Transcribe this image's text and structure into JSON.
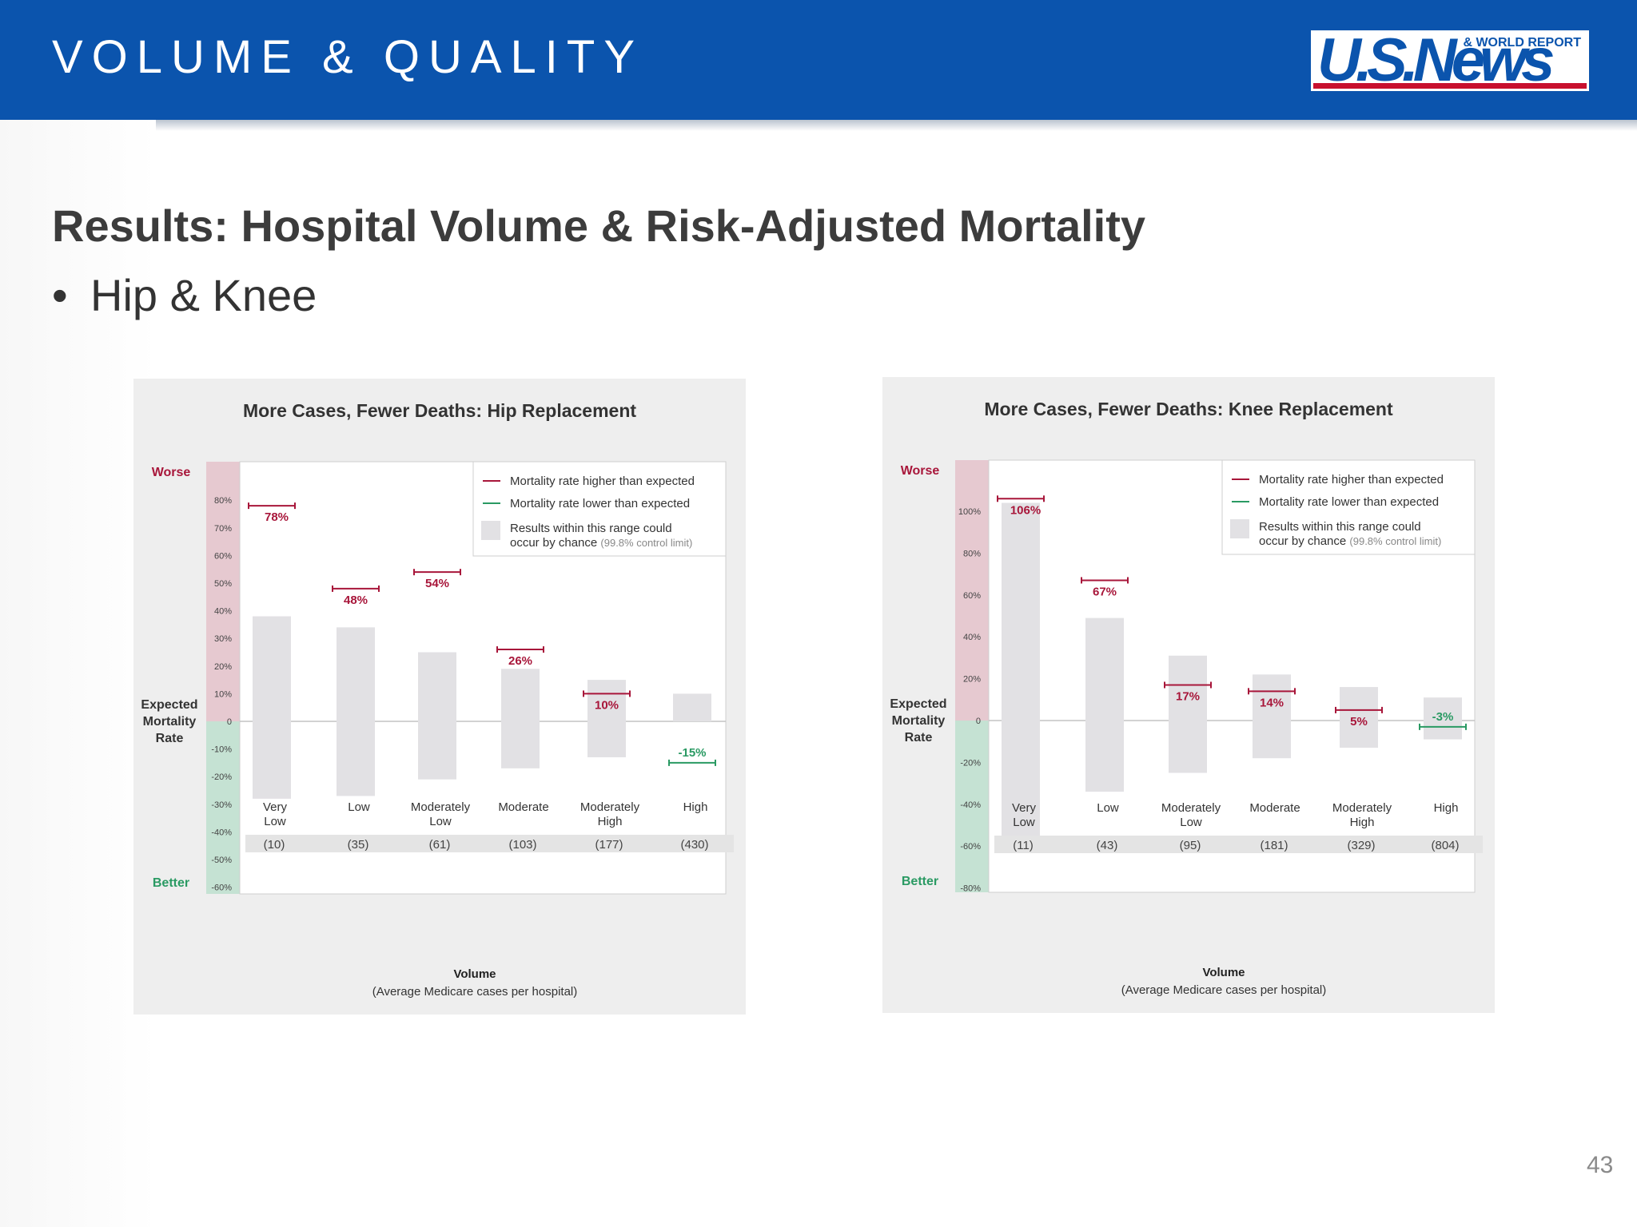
{
  "header": {
    "section_title": "VOLUME & QUALITY",
    "logo_text": "U.S.News",
    "logo_subtext": "& WORLD REPORT",
    "colors": {
      "header_bg": "#0b54ad",
      "logo_red": "#c8102e"
    }
  },
  "slide": {
    "title": "Results: Hospital Volume & Risk-Adjusted Mortality",
    "bullet": "Hip & Knee",
    "page_number": "43"
  },
  "chart_data": [
    {
      "type": "bar",
      "title": "More Cases, Fewer Deaths: Hip Replacement",
      "ylabel": "Expected Mortality Rate",
      "ylabel_top": "Worse",
      "ylabel_bottom": "Better",
      "xlabel": "Volume",
      "xlabel_sub": "(Average Medicare cases per hospital)",
      "ylim": [
        -60,
        90
      ],
      "yticks": [
        -60,
        -50,
        -40,
        -30,
        -20,
        -10,
        0,
        10,
        20,
        30,
        40,
        50,
        60,
        70,
        80
      ],
      "ytick_labels": [
        "-60%",
        "-50%",
        "-40%",
        "-30%",
        "-20%",
        "-10%",
        "0",
        "10%",
        "20%",
        "30%",
        "40%",
        "50%",
        "60%",
        "70%",
        "80%"
      ],
      "categories": [
        "Very Low",
        "Low",
        "Moderately Low",
        "Moderate",
        "Moderately High",
        "High"
      ],
      "category_counts": [
        "(10)",
        "(35)",
        "(61)",
        "(103)",
        "(177)",
        "(430)"
      ],
      "range_low": [
        -28,
        -27,
        -21,
        -17,
        -13,
        0
      ],
      "range_high": [
        38,
        34,
        25,
        19,
        15,
        10
      ],
      "values": [
        78,
        48,
        54,
        26,
        10,
        -15
      ],
      "value_labels": [
        "78%",
        "48%",
        "54%",
        "26%",
        "10%",
        "-15%"
      ],
      "legend": {
        "placement": "top-right",
        "higher": "Mortality rate higher than expected",
        "lower": "Mortality rate lower than expected",
        "range_line1": "Results within this range could",
        "range_line2a": "occur by chance",
        "range_line2b": "(99.8% control limit)"
      },
      "colors": {
        "worse": "#a8163a",
        "better": "#2a9a63",
        "range": "#e2e1e4"
      }
    },
    {
      "type": "bar",
      "title": "More Cases, Fewer Deaths: Knee Replacement",
      "ylabel": "Expected Mortality Rate",
      "ylabel_top": "Worse",
      "ylabel_bottom": "Better",
      "xlabel": "Volume",
      "xlabel_sub": "(Average Medicare cases per hospital)",
      "ylim": [
        -85,
        115
      ],
      "yticks": [
        -80,
        -60,
        -40,
        -20,
        0,
        20,
        40,
        60,
        80,
        100
      ],
      "ytick_labels": [
        "-80%",
        "-60%",
        "-40%",
        "-20%",
        "0",
        "20%",
        "40%",
        "60%",
        "80%",
        "100%"
      ],
      "categories": [
        "Very Low",
        "Low",
        "Moderately Low",
        "Moderate",
        "Moderately High",
        "High"
      ],
      "category_counts": [
        "(11)",
        "(43)",
        "(95)",
        "(181)",
        "(329)",
        "(804)"
      ],
      "range_low": [
        -58,
        -34,
        -25,
        -18,
        -13,
        -9
      ],
      "range_high": [
        104,
        49,
        31,
        22,
        16,
        11
      ],
      "values": [
        106,
        67,
        17,
        14,
        5,
        -3
      ],
      "value_labels": [
        "106%",
        "67%",
        "17%",
        "14%",
        "5%",
        "-3%"
      ],
      "legend": {
        "placement": "top-right",
        "higher": "Mortality rate higher than expected",
        "lower": "Mortality rate lower than expected",
        "range_line1": "Results within this range could",
        "range_line2a": "occur by chance",
        "range_line2b": "(99.8% control limit)"
      },
      "colors": {
        "worse": "#a8163a",
        "better": "#2a9a63",
        "range": "#e2e1e4"
      }
    }
  ]
}
